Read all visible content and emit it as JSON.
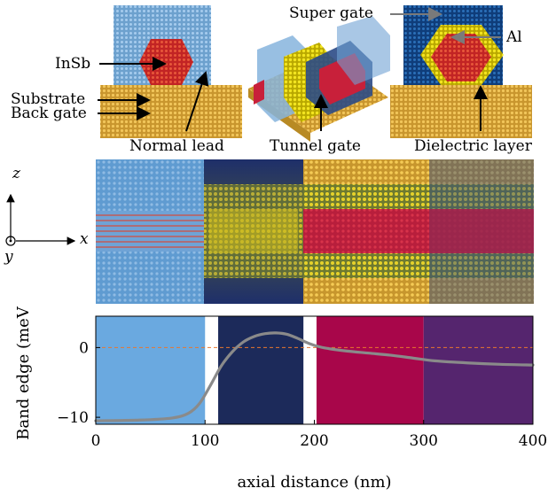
{
  "figure": {
    "top_labels": {
      "insb": "InSb",
      "substrate": "Substrate",
      "back_gate": "Back gate",
      "normal_lead": "Normal lead",
      "tunnel_gate": "Tunnel gate",
      "super_gate": "Super gate",
      "al": "Al",
      "dielectric_layer": "Dielectric layer"
    },
    "axes_labels": {
      "z": "z",
      "y": "y",
      "x": "x"
    }
  },
  "chart_data": {
    "type": "line",
    "xlabel": "axial distance (nm)",
    "ylabel": "Band edge (meV)",
    "xlim": [
      0,
      400
    ],
    "ylim": [
      -11,
      4.5
    ],
    "xticks": [
      0,
      100,
      200,
      300,
      400
    ],
    "yticks": [
      -10,
      0
    ],
    "xtick_labels": [
      "0",
      "100",
      "200",
      "300",
      "400"
    ],
    "ytick_labels": [
      "−10",
      "0"
    ],
    "regions": [
      {
        "x0": 0,
        "x1": 100,
        "color": "#6aa9e0"
      },
      {
        "x0": 112,
        "x1": 190,
        "color": "#1c2a5a"
      },
      {
        "x0": 202,
        "x1": 300,
        "color": "#a8064a"
      },
      {
        "x0": 300,
        "x1": 400,
        "color": "#55256e"
      }
    ],
    "reference_line": {
      "y": 0,
      "color": "#e8772e"
    },
    "series": [
      {
        "color": "#8a8a8a",
        "x": [
          0,
          40,
          70,
          85,
          95,
          105,
          115,
          125,
          135,
          145,
          155,
          165,
          175,
          185,
          195,
          205,
          215,
          230,
          250,
          270,
          290,
          310,
          340,
          370,
          400
        ],
        "y": [
          -10.5,
          -10.4,
          -10.1,
          -9.4,
          -8.0,
          -5.4,
          -2.6,
          -0.6,
          0.8,
          1.6,
          2.0,
          2.1,
          1.9,
          1.3,
          0.6,
          0.1,
          -0.2,
          -0.5,
          -0.8,
          -1.1,
          -1.5,
          -1.9,
          -2.2,
          -2.4,
          -2.5
        ]
      }
    ]
  }
}
